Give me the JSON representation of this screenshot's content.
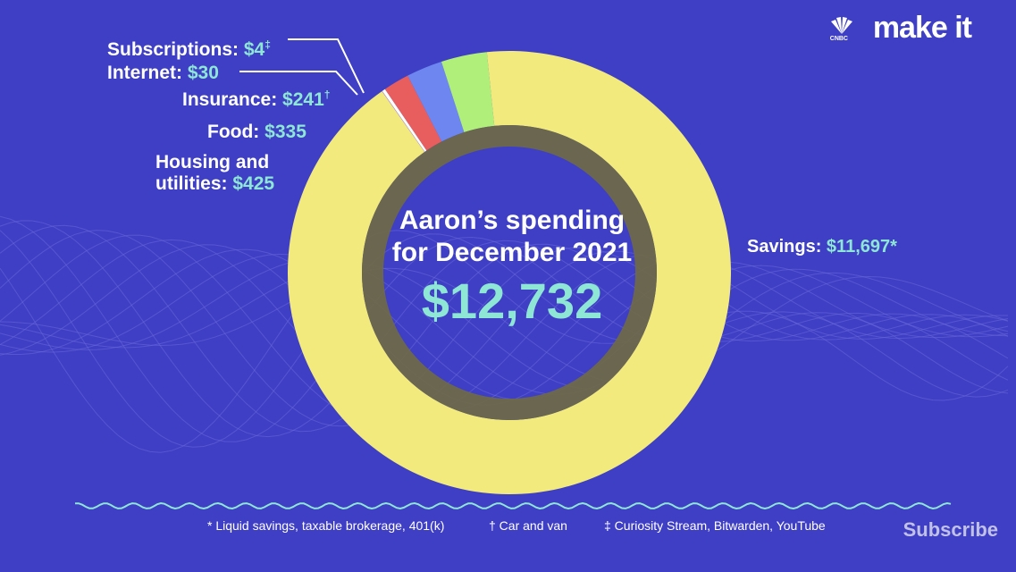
{
  "branding": {
    "logo_text": "make it",
    "logo_sub": "CNBC",
    "subscribe_label": "Subscribe"
  },
  "colors": {
    "background": "#3f3fc6",
    "accent_text": "#8ee6d4",
    "savings": "#f2ea7c",
    "housing": "#b0f07a",
    "food": "#6e87f0",
    "insurance": "#e85d5d",
    "internet": "#ffffff",
    "subscriptions": "#c070e0"
  },
  "labels": {
    "subscriptions": {
      "name": "Subscriptions:",
      "value": "$4",
      "mark": "‡"
    },
    "internet": {
      "name": "Internet:",
      "value": "$30"
    },
    "insurance": {
      "name": "Insurance:",
      "value": "$241",
      "mark": "†"
    },
    "food": {
      "name": "Food:",
      "value": "$335"
    },
    "housing": {
      "name1": "Housing and",
      "name2": "utilities:",
      "value": "$425"
    },
    "savings": {
      "name": "Savings:",
      "value": "$11,697",
      "mark": "*"
    }
  },
  "center": {
    "line1": "Aaron’s spending",
    "line2": "for December 2021",
    "total": "$12,732"
  },
  "footnotes": {
    "savings": "* Liquid savings, taxable brokerage, 401(k)",
    "insurance": "† Car and van",
    "subscriptions": "‡ Curiosity Stream, Bitwarden, YouTube"
  },
  "chart_data": {
    "type": "pie",
    "title": "Aaron’s spending for December 2021",
    "total": 12732,
    "categories": [
      "Savings",
      "Housing and utilities",
      "Food",
      "Insurance",
      "Internet",
      "Subscriptions"
    ],
    "values": [
      11697,
      425,
      335,
      241,
      30,
      4
    ],
    "colors": [
      "#f2ea7c",
      "#b0f07a",
      "#6e87f0",
      "#e85d5d",
      "#ffffff",
      "#c070e0"
    ]
  }
}
